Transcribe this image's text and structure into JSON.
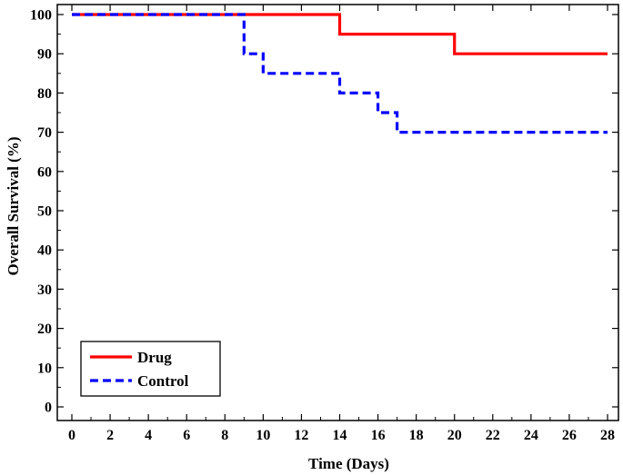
{
  "chart_data": {
    "type": "line",
    "step": true,
    "xlabel": "Time (Days)",
    "ylabel": "Overall Survival (%)",
    "xlim": [
      0,
      28
    ],
    "ylim": [
      0,
      100
    ],
    "xticks": [
      0,
      2,
      4,
      6,
      8,
      10,
      12,
      14,
      16,
      18,
      20,
      22,
      24,
      26,
      28
    ],
    "yticks": [
      0,
      10,
      20,
      30,
      40,
      50,
      60,
      70,
      80,
      90,
      100
    ],
    "grid": false,
    "legend_position": "bottom-left",
    "series": [
      {
        "name": "Drug",
        "color": "#ff0000",
        "dash": "solid",
        "x": [
          0,
          14,
          20,
          28
        ],
        "y": [
          100,
          95,
          90,
          90
        ]
      },
      {
        "name": "Control",
        "color": "#0000ff",
        "dash": "dashed",
        "x": [
          0,
          9,
          10,
          14,
          16,
          17,
          28
        ],
        "y": [
          100,
          90,
          85,
          80,
          75,
          70,
          70
        ]
      }
    ]
  }
}
